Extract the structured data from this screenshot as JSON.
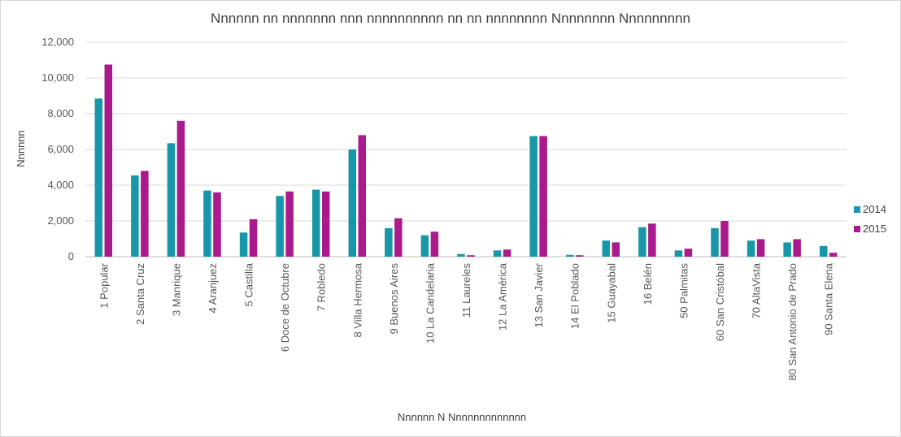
{
  "chart_data": {
    "type": "bar",
    "title": "Nnnnnn nn nnnnnnn nnn nnnnnnnnnn nn nn nnnnnnnn Nnnnnnnn Nnnnnnnnn",
    "xlabel": "Nnnnnn N Nnnnnnnnnnnnn",
    "ylabel": "Nnnnnn",
    "ylim": [
      0,
      12000
    ],
    "yticks": [
      "0",
      "2,000",
      "4,000",
      "6,000",
      "8,000",
      "10,000",
      "12,000"
    ],
    "grid": true,
    "legend_position": "right",
    "categories": [
      "1 Popular",
      "2 Santa Cruz",
      "3 Manrique",
      "4 Aranjuez",
      "5 Castilla",
      "6 Doce de Octubre",
      "7 Robledo",
      "8 Villa Hermosa",
      "9 Buenos Aires",
      "10 La Candelaria",
      "11 Laureles",
      "12 La América",
      "13 San Javier",
      "14 El Poblado",
      "15 Guayabal",
      "16 Belén",
      "50 Palmitas",
      "60 San Cristóbal",
      "70 AltaVista",
      "80 San Antonio de Prado",
      "90 Santa Elena"
    ],
    "series": [
      {
        "name": "2014",
        "color": "#1897A8",
        "values": [
          8850,
          4550,
          6350,
          3700,
          1350,
          3400,
          3750,
          6000,
          1600,
          1200,
          150,
          350,
          6750,
          100,
          900,
          1650,
          350,
          1600,
          900,
          800,
          600
        ]
      },
      {
        "name": "2015",
        "color": "#AA1A8C",
        "values": [
          10750,
          4800,
          7600,
          3600,
          2100,
          3650,
          3650,
          6800,
          2150,
          1400,
          80,
          400,
          6750,
          80,
          800,
          1850,
          450,
          2000,
          980,
          980,
          220
        ]
      }
    ]
  }
}
